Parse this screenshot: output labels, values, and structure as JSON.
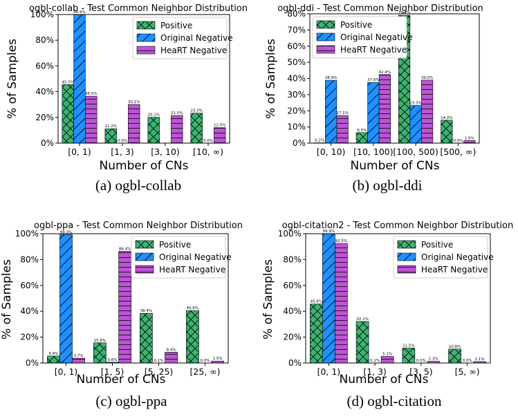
{
  "colors": {
    "positive": "#3cb371",
    "original_negative": "#1e90ff",
    "heart_negative": "#ba55d3"
  },
  "legend_labels": [
    "Positive",
    "Original Negative",
    "HeaRT Negative"
  ],
  "chart_data": [
    {
      "type": "bar",
      "title": "ogbl-collab - Test Common Neighbor Distribution",
      "caption": "(a)  ogbl-collab",
      "xlabel": "Number of CNs",
      "ylabel": "% of Samples",
      "ylim": [
        0,
        100
      ],
      "yticks": [
        "0%",
        "20%",
        "40%",
        "60%",
        "80%",
        "100%"
      ],
      "legend_position": "top-right",
      "categories": [
        "[0, 1)",
        "[1, 3)",
        "[3, 10)",
        "[10, ∞)"
      ],
      "series": [
        {
          "name": "Positive",
          "values": [
            45.5,
            11.2,
            20.1,
            23.3
          ],
          "labels": [
            "45.5%",
            "11.2%",
            "20.1%",
            "23.3%"
          ]
        },
        {
          "name": "Original Negative",
          "values": [
            99.9,
            0.0,
            0.0,
            0.0
          ],
          "labels": [
            "99.9%",
            "0.0%",
            "",
            "0.0%"
          ]
        },
        {
          "name": "HeaRT Negative",
          "values": [
            36.5,
            30.1,
            21.5,
            12.0
          ],
          "labels": [
            "36.5%",
            "30.1%",
            "21.5%",
            "12.0%"
          ]
        }
      ]
    },
    {
      "type": "bar",
      "title": "ogbl-ddi - Test Common Neighbor Distribution",
      "caption": "(b)  ogbl-ddi",
      "xlabel": "Number of CNs",
      "ylabel": "% of Samples",
      "ylim": [
        0,
        80
      ],
      "yticks": [
        "0%",
        "10%",
        "20%",
        "30%",
        "40%",
        "50%",
        "60%",
        "70%",
        "80%"
      ],
      "legend_position": "top-left",
      "categories": [
        "[0, 10)",
        "[10, 100)",
        "[100, 500)",
        "[500, ∞)"
      ],
      "series": [
        {
          "name": "Positive",
          "values": [
            0.2,
            6.5,
            79.1,
            14.2
          ],
          "labels": [
            "0.2%",
            "6.5%",
            "79.1%",
            "14.2%"
          ]
        },
        {
          "name": "Original Negative",
          "values": [
            38.9,
            37.6,
            23.3,
            0.0
          ],
          "labels": [
            "38.9%",
            "37.6%",
            "23.3%",
            "0.0%"
          ]
        },
        {
          "name": "HeaRT Negative",
          "values": [
            17.1,
            42.4,
            39.0,
            1.6
          ],
          "labels": [
            "17.1%",
            "42.4%",
            "39.0%",
            "1.6%"
          ]
        }
      ]
    },
    {
      "type": "bar",
      "title": "ogbl-ppa - Test Common Neighbor Distribution",
      "caption": "(c)  ogbl-ppa",
      "xlabel": "Number of CNs",
      "ylabel": "% of Samples",
      "ylim": [
        0,
        100
      ],
      "yticks": [
        "0%",
        "20%",
        "40%",
        "60%",
        "80%",
        "100%"
      ],
      "legend_position": "top-right",
      "categories": [
        "[0, 1)",
        "[1, 5)",
        "[5, 25)",
        "[25, ∞)"
      ],
      "series": [
        {
          "name": "Positive",
          "values": [
            5.4,
            15.6,
            38.4,
            40.6
          ],
          "labels": [
            "5.4%",
            "15.6%",
            "38.4%",
            "40.6%"
          ]
        },
        {
          "name": "Original Negative",
          "values": [
            99.3,
            0.6,
            0.1,
            0.0
          ],
          "labels": [
            "99.3%",
            "0.6%",
            "0.1%",
            "0.0%"
          ]
        },
        {
          "name": "HeaRT Negative",
          "values": [
            3.7,
            86.4,
            8.4,
            1.5
          ],
          "labels": [
            "3.7%",
            "86.4%",
            "8.4%",
            "1.5%"
          ]
        }
      ]
    },
    {
      "type": "bar",
      "title": "ogbl-citation2 - Test Common Neighbor Distribution",
      "caption": "(d)  ogbl-citation",
      "xlabel": "Number of CNs",
      "ylabel": "% of Samples",
      "ylim": [
        0,
        100
      ],
      "yticks": [
        "0%",
        "20%",
        "40%",
        "60%",
        "80%",
        "100%"
      ],
      "legend_position": "top-right",
      "categories": [
        "[0, 1)",
        "[1, 3)",
        "[3, 5)",
        "[5, ∞)"
      ],
      "series": [
        {
          "name": "Positive",
          "values": [
            45.6,
            32.1,
            11.5,
            10.8
          ],
          "labels": [
            "45.6%",
            "32.1%",
            "11.5%",
            "10.8%"
          ]
        },
        {
          "name": "Original Negative",
          "values": [
            99.9,
            0.1,
            0.0,
            0.0
          ],
          "labels": [
            "99.9%",
            "0.1%",
            "0.0%",
            "0.0%"
          ]
        },
        {
          "name": "HeaRT Negative",
          "values": [
            92.5,
            5.1,
            1.3,
            1.1
          ],
          "labels": [
            "92.5%",
            "5.1%",
            "1.3%",
            "1.1%"
          ]
        }
      ]
    }
  ]
}
